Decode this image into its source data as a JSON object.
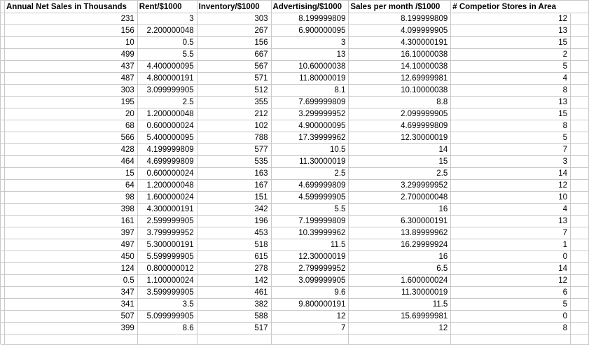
{
  "app": {
    "type": "spreadsheet-grid"
  },
  "colors": {
    "background": "#ffffff",
    "gridline": "#c9c9c9",
    "text": "#000000"
  },
  "table": {
    "headers": [
      "Annual Net Sales in Thousands",
      "Rent/$1000",
      "Inventory/$1000",
      "Advertising/$1000",
      "Sales per month /$1000",
      "# Competior Stores in Area"
    ],
    "rows": [
      [
        "231",
        "3",
        "303",
        "8.199999809",
        "8.199999809",
        "12"
      ],
      [
        "156",
        "2.200000048",
        "267",
        "6.900000095",
        "4.099999905",
        "13"
      ],
      [
        "10",
        "0.5",
        "156",
        "3",
        "4.300000191",
        "15"
      ],
      [
        "499",
        "5.5",
        "667",
        "13",
        "16.10000038",
        "2"
      ],
      [
        "437",
        "4.400000095",
        "567",
        "10.60000038",
        "14.10000038",
        "5"
      ],
      [
        "487",
        "4.800000191",
        "571",
        "11.80000019",
        "12.69999981",
        "4"
      ],
      [
        "303",
        "3.099999905",
        "512",
        "8.1",
        "10.10000038",
        "8"
      ],
      [
        "195",
        "2.5",
        "355",
        "7.699999809",
        "8.8",
        "13"
      ],
      [
        "20",
        "1.200000048",
        "212",
        "3.299999952",
        "2.099999905",
        "15"
      ],
      [
        "68",
        "0.600000024",
        "102",
        "4.900000095",
        "4.699999809",
        "8"
      ],
      [
        "566",
        "5.400000095",
        "788",
        "17.39999962",
        "12.30000019",
        "5"
      ],
      [
        "428",
        "4.199999809",
        "577",
        "10.5",
        "14",
        "7"
      ],
      [
        "464",
        "4.699999809",
        "535",
        "11.30000019",
        "15",
        "3"
      ],
      [
        "15",
        "0.600000024",
        "163",
        "2.5",
        "2.5",
        "14"
      ],
      [
        "64",
        "1.200000048",
        "167",
        "4.699999809",
        "3.299999952",
        "12"
      ],
      [
        "98",
        "1.600000024",
        "151",
        "4.599999905",
        "2.700000048",
        "10"
      ],
      [
        "398",
        "4.300000191",
        "342",
        "5.5",
        "16",
        "4"
      ],
      [
        "161",
        "2.599999905",
        "196",
        "7.199999809",
        "6.300000191",
        "13"
      ],
      [
        "397",
        "3.799999952",
        "453",
        "10.39999962",
        "13.89999962",
        "7"
      ],
      [
        "497",
        "5.300000191",
        "518",
        "11.5",
        "16.29999924",
        "1"
      ],
      [
        "450",
        "5.599999905",
        "615",
        "12.30000019",
        "16",
        "0"
      ],
      [
        "124",
        "0.800000012",
        "278",
        "2.799999952",
        "6.5",
        "14"
      ],
      [
        "0.5",
        "1.100000024",
        "142",
        "3.099999905",
        "1.600000024",
        "12"
      ],
      [
        "347",
        "3.599999905",
        "461",
        "9.6",
        "11.30000019",
        "6"
      ],
      [
        "341",
        "3.5",
        "382",
        "9.800000191",
        "11.5",
        "5"
      ],
      [
        "507",
        "5.099999905",
        "588",
        "12",
        "15.69999981",
        "0"
      ],
      [
        "399",
        "8.6",
        "517",
        "7",
        "12",
        "8"
      ]
    ]
  }
}
